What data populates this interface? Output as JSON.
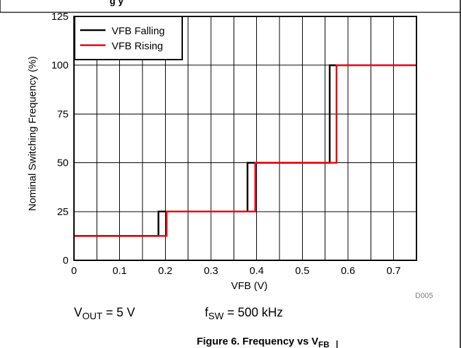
{
  "header": {
    "title_fragment": "g         y"
  },
  "chart_data": {
    "type": "line",
    "title": "",
    "xlabel": "VFB (V)",
    "ylabel": "Nominal Switching Frequency (%)",
    "xlim": [
      0,
      0.75
    ],
    "ylim": [
      0,
      125
    ],
    "x_ticks": [
      0,
      0.1,
      0.2,
      0.3,
      0.4,
      0.5,
      0.6,
      0.7
    ],
    "x_tick_labels": [
      "0",
      "0.1",
      "0.2",
      "0.3",
      "0.4",
      "0.5",
      "0.6",
      "0.7"
    ],
    "y_ticks": [
      0,
      25,
      50,
      75,
      100,
      125
    ],
    "y_tick_labels": [
      "0",
      "25",
      "50",
      "75",
      "100",
      "125"
    ],
    "x_minor_gridlines": [
      0.05,
      0.15,
      0.25,
      0.35,
      0.45,
      0.55,
      0.65
    ],
    "grid": true,
    "legend_position": "top-left",
    "series": [
      {
        "name": "VFB Falling",
        "color": "#000000",
        "step": true,
        "x": [
          0,
          0.185,
          0.185,
          0.38,
          0.38,
          0.56,
          0.56,
          0.75
        ],
        "y": [
          12.5,
          12.5,
          25,
          25,
          50,
          50,
          100,
          100
        ]
      },
      {
        "name": "VFB Rising",
        "color": "#e8000b",
        "step": true,
        "x": [
          0,
          0.203,
          0.203,
          0.397,
          0.397,
          0.575,
          0.575,
          0.75
        ],
        "y": [
          12.5,
          12.5,
          25,
          25,
          50,
          50,
          100,
          100
        ]
      }
    ]
  },
  "conditions": {
    "vout_symbol": "V",
    "vout_sub": "OUT",
    "vout_value": " = 5 V",
    "fsw_symbol": "f",
    "fsw_sub": "SW",
    "fsw_value": " = 500 kHz"
  },
  "figure_code": "D005",
  "caption": {
    "text": "Figure 6. Frequency vs V",
    "sub": "FB"
  }
}
